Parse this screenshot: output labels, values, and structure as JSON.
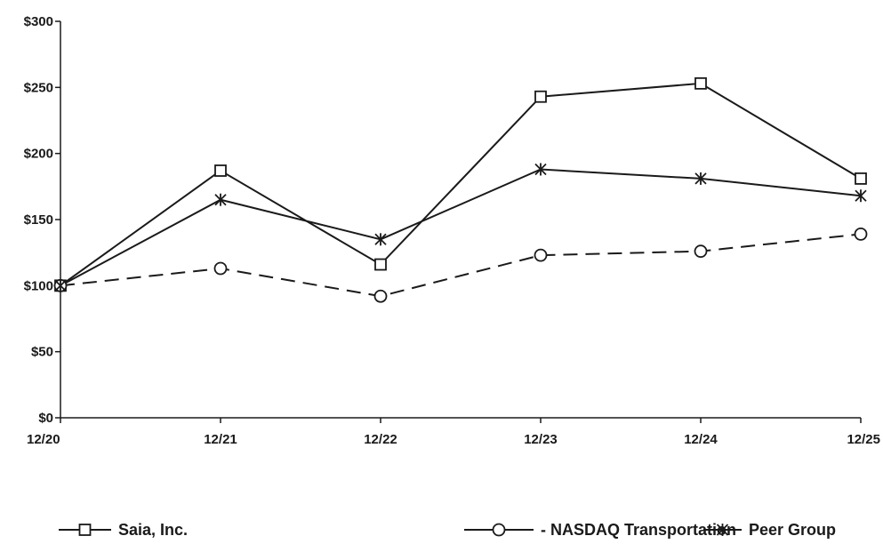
{
  "chart_data": {
    "type": "line",
    "x": [
      "12/20",
      "12/21",
      "12/22",
      "12/23",
      "12/24",
      "12/25"
    ],
    "ylim": [
      0,
      300
    ],
    "yticks": [
      0,
      50,
      100,
      150,
      200,
      250,
      300
    ],
    "ytick_labels": [
      "$0",
      "$50",
      "$100",
      "$150",
      "$200",
      "$250",
      "$300"
    ],
    "grid": false,
    "legend_position": "bottom",
    "series": [
      {
        "name": "Saia, Inc.",
        "values": [
          100,
          187,
          116,
          243,
          253,
          181
        ],
        "marker": "square",
        "line": "solid",
        "color": "#1a1a1a"
      },
      {
        "name": "- NASDAQ Transportation",
        "values": [
          100,
          113,
          92,
          123,
          126,
          139
        ],
        "marker": "circle",
        "line": "dashed",
        "color": "#1a1a1a"
      },
      {
        "name": "Peer Group",
        "values": [
          100,
          165,
          135,
          188,
          181,
          168
        ],
        "marker": "asterisk",
        "line": "solid",
        "color": "#1a1a1a"
      }
    ]
  }
}
